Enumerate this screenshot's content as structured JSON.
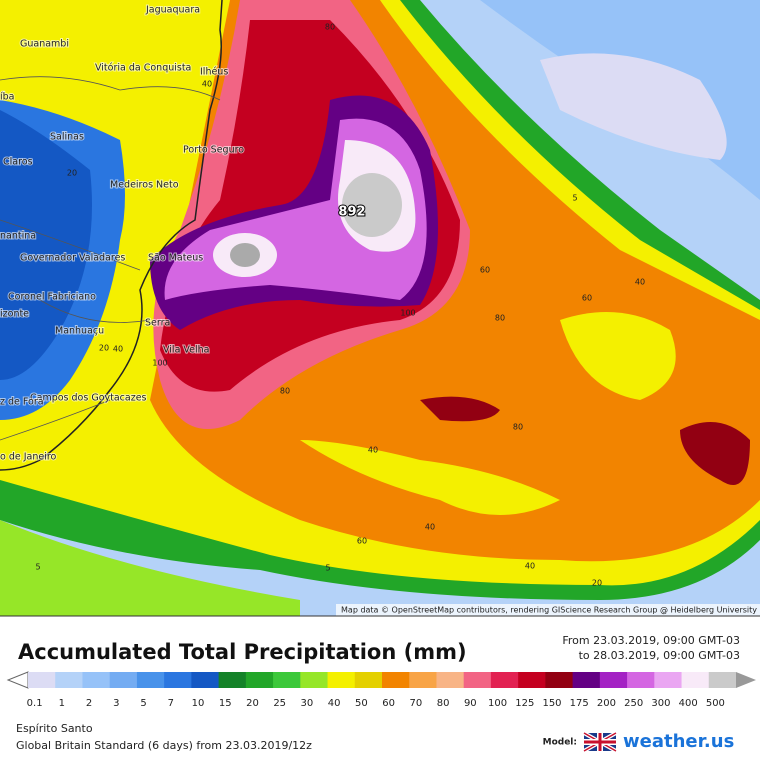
{
  "map": {
    "cities": [
      "Jaguaquara",
      "Guanambi",
      "Vitória da Conquista",
      "Ilhéus",
      "íba",
      "Salinas",
      "Porto Seguro",
      "Claros",
      "Medeiros Neto",
      "nantina",
      "Governador Valadares",
      "São Mateus",
      "Coronel Fabriciano",
      "izonte",
      "Manhuaçu",
      "Serra",
      "Vila Velha",
      "Campos dos Goytacazes",
      "z de Fora",
      "o de Janeiro"
    ],
    "contour_labels": [
      "80",
      "40",
      "20",
      "892",
      "5",
      "60",
      "40",
      "60",
      "100",
      "80",
      "40",
      "100",
      "80",
      "80",
      "40",
      "40",
      "60",
      "40",
      "20",
      "5",
      "5",
      "20"
    ],
    "attribution": "Map data © OpenStreetMap contributors, rendering GIScience Research Group @ Heidelberg University"
  },
  "legend": {
    "title": "Accumulated Total Precipitation (mm)",
    "period_from": "From 23.03.2019, 09:00 GMT-03",
    "period_to": "to 28.03.2019, 09:00 GMT-03",
    "scale": [
      {
        "label": "0.1",
        "color": "#dcdcf4"
      },
      {
        "label": "1",
        "color": "#b4d2f8"
      },
      {
        "label": "2",
        "color": "#96c2f8"
      },
      {
        "label": "3",
        "color": "#74acf2"
      },
      {
        "label": "5",
        "color": "#4892ea"
      },
      {
        "label": "7",
        "color": "#2a76e0"
      },
      {
        "label": "10",
        "color": "#1458c4"
      },
      {
        "label": "15",
        "color": "#148228"
      },
      {
        "label": "20",
        "color": "#22a628"
      },
      {
        "label": "25",
        "color": "#3cc83a"
      },
      {
        "label": "30",
        "color": "#96e628"
      },
      {
        "label": "40",
        "color": "#f4f000"
      },
      {
        "label": "50",
        "color": "#e4d000"
      },
      {
        "label": "60",
        "color": "#f28400"
      },
      {
        "label": "70",
        "color": "#f8a446"
      },
      {
        "label": "80",
        "color": "#f8b486"
      },
      {
        "label": "90",
        "color": "#f26484"
      },
      {
        "label": "100",
        "color": "#e22252"
      },
      {
        "label": "125",
        "color": "#c40020"
      },
      {
        "label": "150",
        "color": "#920012"
      },
      {
        "label": "175",
        "color": "#640084"
      },
      {
        "label": "200",
        "color": "#a422c4"
      },
      {
        "label": "250",
        "color": "#d466e2"
      },
      {
        "label": "300",
        "color": "#eaa6f2"
      },
      {
        "label": "400",
        "color": "#f8eaf8"
      },
      {
        "label": "500",
        "color": "#cacaca"
      }
    ],
    "region": "Espírito Santo",
    "model_line": "Global Britain Standard (6 days) from 23.03.2019/12z",
    "model_label": "Model:",
    "brand": "weather.us"
  }
}
